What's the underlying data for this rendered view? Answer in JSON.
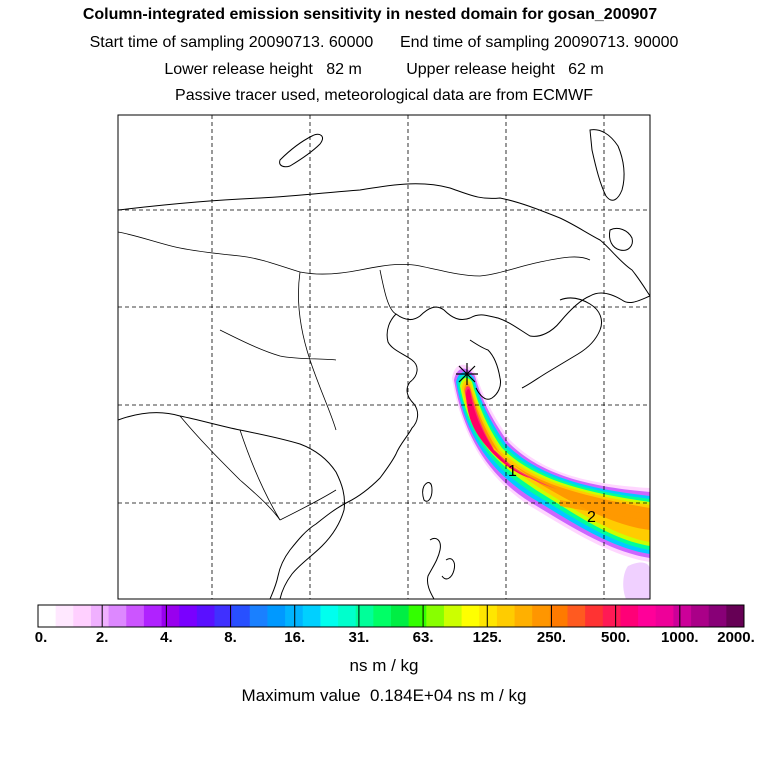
{
  "header": {
    "title": "Column-integrated emission sensitivity in nested domain for gosan_200907",
    "sampling_line": "Start time of sampling 20090713. 60000      End time of sampling 20090713. 90000",
    "release_line": "Lower release height   82 m          Upper release height   62 m",
    "tracer_line": "Passive tracer used, meteorological data are from ECMWF"
  },
  "map": {
    "release_marker": "release-site-asterisk",
    "trajectory_labels": [
      "1",
      "2"
    ],
    "plume_colors": [
      "#ffd6ff",
      "#cc66ff",
      "#00ccff",
      "#00ff99",
      "#ccff00",
      "#ffcc00",
      "#ff9900",
      "#ff3366",
      "#ff0066"
    ]
  },
  "colorbar": {
    "tick_labels": [
      "0.",
      "2.",
      "4.",
      "8.",
      "16.",
      "31.",
      "63.",
      "125.",
      "250.",
      "500.",
      "1000.",
      "2000."
    ],
    "colors": [
      "#ffffff",
      "#ffe8ff",
      "#ffd0ff",
      "#f0b0ff",
      "#dd88ff",
      "#cc55ff",
      "#b022ff",
      "#9900ee",
      "#7a00ff",
      "#5a10ff",
      "#4030ff",
      "#2850ff",
      "#1a80ff",
      "#0099ff",
      "#00b4ff",
      "#00d0ff",
      "#00ffee",
      "#00ffcc",
      "#00ff99",
      "#00ff66",
      "#00ee44",
      "#33ff00",
      "#88ff00",
      "#ccff00",
      "#ffff00",
      "#ffe600",
      "#ffcc00",
      "#ffb000",
      "#ff9600",
      "#ff7a00",
      "#ff5a20",
      "#ff3333",
      "#ff1a55",
      "#ff0077",
      "#ff0099",
      "#ee0099",
      "#cc0099",
      "#aa0088",
      "#880077",
      "#660055"
    ],
    "unit": "ns m / kg",
    "max_value": "Maximum value  0.184E+04 ns m / kg"
  }
}
